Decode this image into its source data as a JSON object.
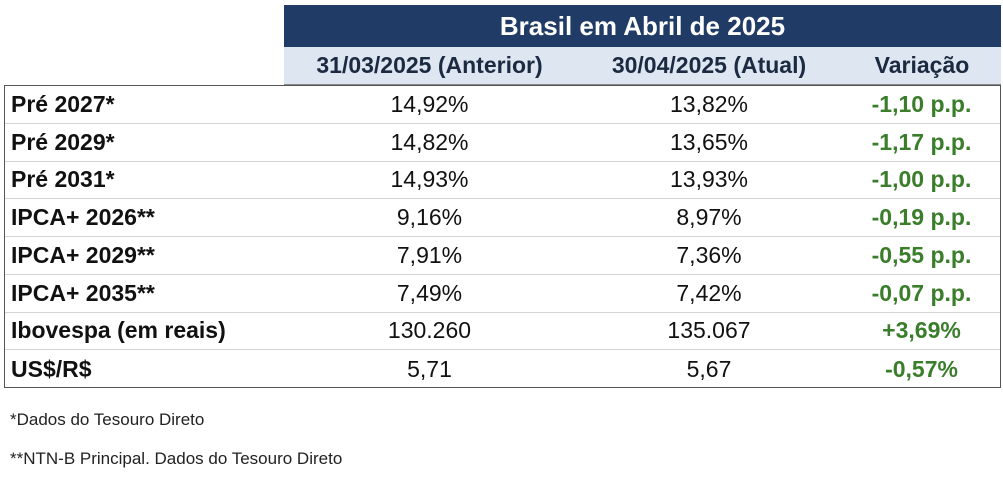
{
  "table": {
    "title": "Brasil em Abril de 2025",
    "headers": {
      "previous": "31/03/2025 (Anterior)",
      "current": "30/04/2025 (Atual)",
      "variation": "Variação"
    },
    "rows": [
      {
        "label": "Pré 2027*",
        "previous": "14,92%",
        "current": "13,82%",
        "variation": "-1,10 p.p."
      },
      {
        "label": "Pré 2029*",
        "previous": "14,82%",
        "current": "13,65%",
        "variation": "-1,17 p.p."
      },
      {
        "label": "Pré 2031*",
        "previous": "14,93%",
        "current": "13,93%",
        "variation": "-1,00 p.p."
      },
      {
        "label": "IPCA+ 2026**",
        "previous": "9,16%",
        "current": "8,97%",
        "variation": "-0,19 p.p."
      },
      {
        "label": "IPCA+ 2029**",
        "previous": "7,91%",
        "current": "7,36%",
        "variation": "-0,55 p.p."
      },
      {
        "label": "IPCA+ 2035**",
        "previous": "7,49%",
        "current": "7,42%",
        "variation": "-0,07 p.p."
      },
      {
        "label": "Ibovespa (em reais)",
        "previous": "130.260",
        "current": "135.067",
        "variation": "+3,69%"
      },
      {
        "label": "US$/R$",
        "previous": "5,71",
        "current": "5,67",
        "variation": "-0,57%"
      }
    ]
  },
  "footnotes": {
    "note1": "*Dados do Tesouro Direto",
    "note2": "**NTN-B Principal. Dados do Tesouro Direto"
  },
  "colors": {
    "title_bg": "#1f3b66",
    "header_bg": "#dde6f1",
    "variation_text": "#3a7d2a"
  }
}
